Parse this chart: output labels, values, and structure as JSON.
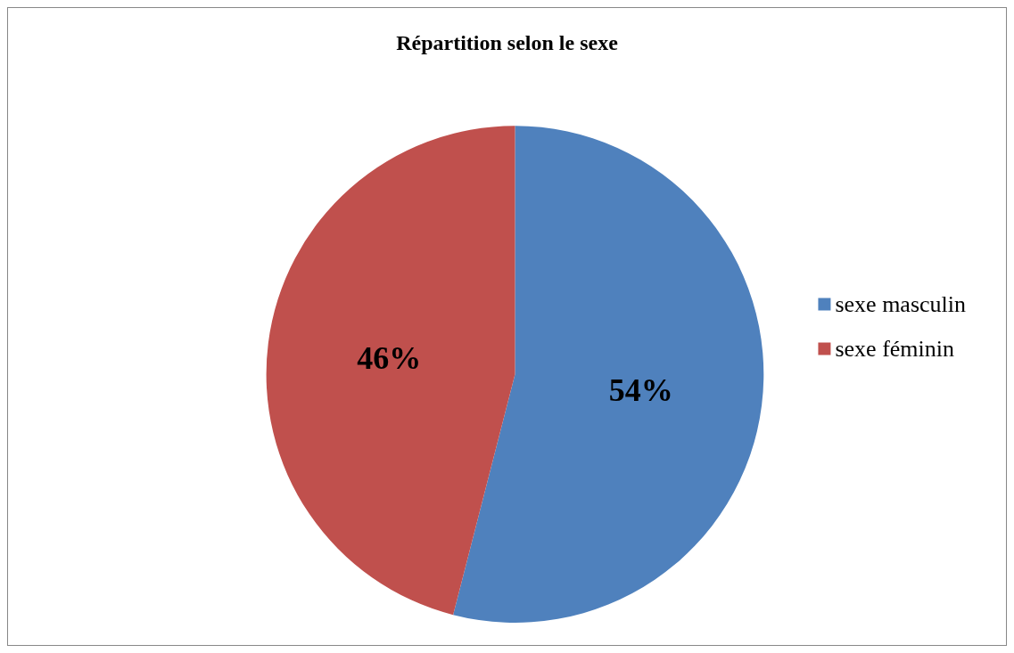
{
  "chart_data": {
    "type": "pie",
    "title": "Répartition selon le sexe",
    "categories": [
      "sexe masculin",
      "sexe féminin"
    ],
    "values": [
      54,
      46
    ],
    "colors": [
      "#4f81bd",
      "#c0504d"
    ],
    "value_labels": [
      "54%",
      "46%"
    ],
    "legend": "right"
  }
}
